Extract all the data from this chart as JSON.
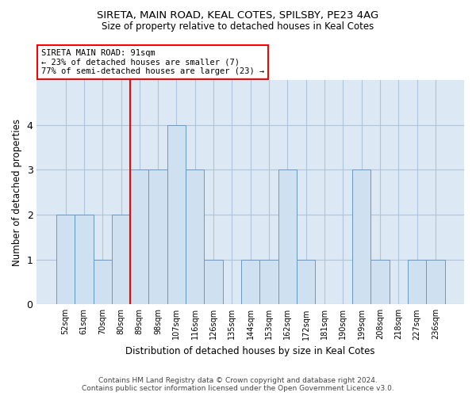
{
  "title1": "SIRETA, MAIN ROAD, KEAL COTES, SPILSBY, PE23 4AG",
  "title2": "Size of property relative to detached houses in Keal Cotes",
  "xlabel": "Distribution of detached houses by size in Keal Cotes",
  "ylabel": "Number of detached properties",
  "bins": [
    "52sqm",
    "61sqm",
    "70sqm",
    "80sqm",
    "89sqm",
    "98sqm",
    "107sqm",
    "116sqm",
    "126sqm",
    "135sqm",
    "144sqm",
    "153sqm",
    "162sqm",
    "172sqm",
    "181sqm",
    "190sqm",
    "199sqm",
    "208sqm",
    "218sqm",
    "227sqm",
    "236sqm"
  ],
  "values": [
    2,
    2,
    1,
    2,
    3,
    3,
    4,
    3,
    1,
    0,
    1,
    1,
    3,
    1,
    0,
    0,
    3,
    1,
    0,
    1,
    1
  ],
  "bar_color": "#cfe0f0",
  "bar_edge_color": "#6699cc",
  "red_line_index": 4,
  "annotation_text": "SIRETA MAIN ROAD: 91sqm\n← 23% of detached houses are smaller (7)\n77% of semi-detached houses are larger (23) →",
  "annotation_box_color": "white",
  "annotation_edge_color": "red",
  "footer1": "Contains HM Land Registry data © Crown copyright and database right 2024.",
  "footer2": "Contains public sector information licensed under the Open Government Licence v3.0.",
  "ylim": [
    0,
    5
  ],
  "yticks": [
    0,
    1,
    2,
    3,
    4,
    5
  ],
  "bg_color": "#e8f0f8",
  "plot_bg_color": "#dce8f4",
  "grid_color": "#b0c4de"
}
